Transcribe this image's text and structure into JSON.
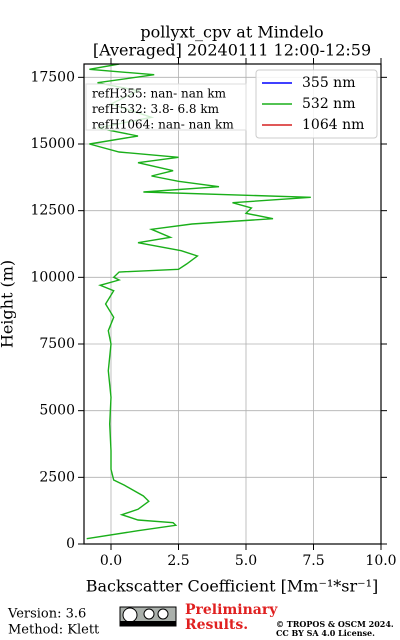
{
  "chart_data": {
    "type": "profile",
    "title": [
      "pollyxt_cpv at Mindelo",
      "[Averaged] 20240111 12:00-12:59"
    ],
    "x_label": "Backscatter Coefficient [Mm⁻¹*sr⁻¹]",
    "y_label": "Height (m)",
    "xlim": [
      -1,
      10
    ],
    "xticks": [
      {
        "value": 0,
        "label": "0.0"
      },
      {
        "value": 2.5,
        "label": "2.5"
      },
      {
        "value": 5,
        "label": "5.0"
      },
      {
        "value": 7.5,
        "label": "7.5"
      },
      {
        "value": 10,
        "label": "10.0"
      }
    ],
    "ylim": [
      0,
      18000
    ],
    "yticks": [
      0,
      2500,
      5000,
      7500,
      10000,
      12500,
      15000,
      17500
    ],
    "grid": true,
    "legend": "upper right",
    "annotations": [
      "refH355:  nan- nan km",
      "refH532:  3.8- 6.8 km",
      "refH1064:  nan- nan km"
    ],
    "series": [
      {
        "name": "355 nm",
        "color": "#0000ff",
        "values": [],
        "heights": []
      },
      {
        "name": "532 nm",
        "color": "#1aaf1a",
        "values": [
          -0.9,
          1.0,
          2.4,
          2.3,
          1.0,
          0.4,
          1.0,
          1.4,
          1.2,
          0.5,
          0.1,
          0.0,
          0.0,
          -0.05,
          0.0,
          -0.1,
          0.0,
          -0.1,
          0.1,
          -0.2,
          0.1,
          -0.4,
          0.3,
          0.1,
          0.3,
          2.5,
          2.8,
          3.2,
          2.6,
          1.0,
          2.2,
          1.5,
          3.0,
          6.0,
          5.0,
          5.2,
          4.5,
          7.4,
          1.2,
          4.0,
          2.5,
          1.5,
          2.3,
          1.0,
          2.5,
          0.3,
          -0.8,
          1.0,
          -0.5,
          1.5,
          0.0,
          1.0,
          -0.5,
          1.6,
          -0.8,
          0.3
        ],
        "heights": [
          200,
          500,
          700,
          800,
          900,
          1100,
          1300,
          1600,
          1800,
          2200,
          2400,
          2800,
          3500,
          4500,
          5500,
          6500,
          7500,
          8000,
          8500,
          9000,
          9500,
          9700,
          9900,
          10000,
          10200,
          10300,
          10500,
          10800,
          11000,
          11300,
          11500,
          11800,
          12000,
          12200,
          12400,
          12600,
          12800,
          13000,
          13200,
          13400,
          13600,
          13800,
          14000,
          14300,
          14500,
          14700,
          15000,
          15300,
          15600,
          16000,
          16500,
          17000,
          17300,
          17600,
          17800,
          18000
        ]
      },
      {
        "name": "1064 nm",
        "color": "#d62020",
        "values": [],
        "heights": []
      }
    ]
  },
  "footer": {
    "version": "Version: 3.6",
    "method": "Method: Klett",
    "preliminary": [
      "Preliminary",
      "Results."
    ],
    "copyright": [
      "© TROPOS & OSCM 2024.",
      "CC BY SA 4.0 License."
    ]
  }
}
